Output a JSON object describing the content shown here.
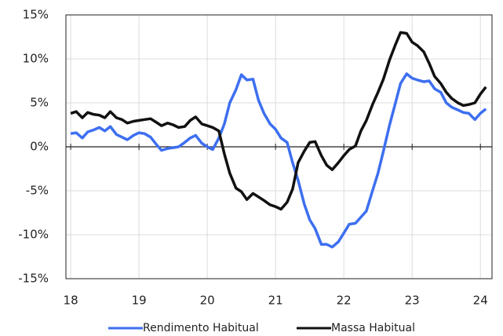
{
  "chart_data": {
    "type": "line",
    "x": [
      18.0,
      18.08,
      18.17,
      18.25,
      18.33,
      18.42,
      18.5,
      18.58,
      18.67,
      18.75,
      18.83,
      18.92,
      19.0,
      19.08,
      19.17,
      19.25,
      19.33,
      19.42,
      19.5,
      19.58,
      19.67,
      19.75,
      19.83,
      19.92,
      20.0,
      20.08,
      20.17,
      20.25,
      20.33,
      20.42,
      20.5,
      20.58,
      20.67,
      20.75,
      20.83,
      20.92,
      21.0,
      21.08,
      21.17,
      21.25,
      21.33,
      21.42,
      21.5,
      21.58,
      21.67,
      21.75,
      21.83,
      21.92,
      22.0,
      22.08,
      22.17,
      22.25,
      22.33,
      22.42,
      22.5,
      22.58,
      22.67,
      22.75,
      22.83,
      22.92,
      23.0,
      23.08,
      23.17,
      23.25,
      23.33,
      23.42,
      23.5,
      23.58,
      23.67,
      23.75,
      23.83,
      23.92,
      24.0,
      24.08
    ],
    "series": [
      {
        "name": "Rendimento Habitual",
        "color": "#3d6ff0",
        "values": [
          1.5,
          1.6,
          1.0,
          1.7,
          1.9,
          2.2,
          1.8,
          2.3,
          1.4,
          1.1,
          0.8,
          1.3,
          1.6,
          1.5,
          1.1,
          0.3,
          -0.4,
          -0.2,
          -0.1,
          0.0,
          0.5,
          1.0,
          1.3,
          0.4,
          0.0,
          -0.3,
          1.0,
          2.6,
          5.0,
          6.5,
          8.2,
          7.6,
          7.7,
          5.3,
          3.8,
          2.6,
          2.0,
          1.0,
          0.5,
          -1.8,
          -3.8,
          -6.5,
          -8.3,
          -9.3,
          -11.1,
          -11.1,
          -11.4,
          -10.8,
          -9.8,
          -8.8,
          -8.7,
          -8.0,
          -7.3,
          -5.0,
          -3.0,
          -0.5,
          2.5,
          4.8,
          7.2,
          8.3,
          7.8,
          7.6,
          7.4,
          7.5,
          6.6,
          6.2,
          5.0,
          4.5,
          4.2,
          3.9,
          3.8,
          3.1,
          3.8,
          4.3
        ]
      },
      {
        "name": "Massa Habitual",
        "color": "#111111",
        "values": [
          3.8,
          4.0,
          3.3,
          3.9,
          3.7,
          3.6,
          3.3,
          4.0,
          3.3,
          3.1,
          2.7,
          2.9,
          3.0,
          3.1,
          3.2,
          2.8,
          2.4,
          2.7,
          2.5,
          2.2,
          2.3,
          3.0,
          3.4,
          2.6,
          2.4,
          2.2,
          1.8,
          -0.8,
          -3.0,
          -4.7,
          -5.1,
          -6.0,
          -5.3,
          -5.7,
          -6.1,
          -6.6,
          -6.8,
          -7.1,
          -6.3,
          -4.8,
          -1.8,
          -0.5,
          0.5,
          0.6,
          -1.0,
          -2.1,
          -2.6,
          -1.8,
          -1.0,
          -0.3,
          0.1,
          1.8,
          3.0,
          4.8,
          6.2,
          7.7,
          9.9,
          11.5,
          13.0,
          12.9,
          11.9,
          11.5,
          10.8,
          9.5,
          8.0,
          7.2,
          6.2,
          5.5,
          5.0,
          4.7,
          4.8,
          5.0,
          6.0,
          6.8
        ]
      }
    ],
    "xlim": [
      17.93,
      24.17
    ],
    "xticks": [
      18,
      19,
      20,
      21,
      22,
      23,
      24
    ],
    "ylim": [
      -15,
      15
    ],
    "yticks": [
      {
        "value": -15,
        "label": "-15%"
      },
      {
        "value": -10,
        "label": "-10%"
      },
      {
        "value": -5,
        "label": "-5%"
      },
      {
        "value": 0,
        "label": "0%"
      },
      {
        "value": 5,
        "label": "5%"
      },
      {
        "value": 10,
        "label": "10%"
      },
      {
        "value": 15,
        "label": "15%"
      }
    ],
    "grid": true,
    "legend": "bottom"
  }
}
